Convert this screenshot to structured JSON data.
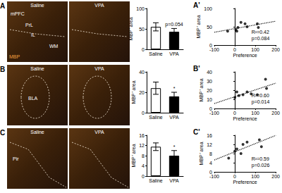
{
  "chart_data": [
    {
      "type": "bar",
      "ylabel": "MBP⁺ area",
      "categories": [
        "Saline",
        "VPA"
      ],
      "values": [
        55,
        43
      ],
      "errors": [
        10,
        8
      ],
      "colors": [
        "#ffffff",
        "#000000"
      ],
      "ylim": [
        0,
        100
      ],
      "yticks": [
        0,
        50,
        100
      ],
      "annotations": [
        {
          "category": "VPA",
          "text": "p=0.054"
        }
      ]
    },
    {
      "type": "bar",
      "ylabel": "MBP⁺ area",
      "categories": [
        "Saline",
        "VPA"
      ],
      "values": [
        24,
        16
      ],
      "errors": [
        6,
        4
      ],
      "colors": [
        "#ffffff",
        "#000000"
      ],
      "ylim": [
        0,
        40
      ],
      "yticks": [
        0,
        20,
        40
      ],
      "annotations": [
        {
          "category": "VPA",
          "text": "*"
        }
      ]
    },
    {
      "type": "bar",
      "ylabel": "MBP⁺ area",
      "categories": [
        "Saline",
        "VPA"
      ],
      "values": [
        11.5,
        8
      ],
      "errors": [
        1.5,
        2
      ],
      "colors": [
        "#ffffff",
        "#000000"
      ],
      "ylim": [
        0,
        16
      ],
      "yticks": [
        0,
        4,
        8,
        12,
        16
      ],
      "annotations": [
        {
          "category": "VPA",
          "text": "*"
        }
      ]
    },
    {
      "type": "scatter",
      "title": "A'",
      "xlabel": "Preference",
      "ylabel": "MBP⁺ area",
      "x": [
        -35,
        5,
        10,
        15,
        30,
        50,
        60,
        110,
        115
      ],
      "values": [
        38,
        42,
        38,
        48,
        62,
        58,
        50,
        58,
        48
      ],
      "xlim": [
        -100,
        200
      ],
      "xticks": [
        -100,
        0,
        100,
        200
      ],
      "ylim": [
        0,
        100
      ],
      "yticks": [
        0,
        50,
        100
      ],
      "annotations": [
        "R²=0.42",
        "p=0.084"
      ],
      "color": "#000000",
      "marker": "circle",
      "line_style": "dotted"
    },
    {
      "type": "scatter",
      "title": "B'",
      "xlabel": "Preference",
      "ylabel": "MBP⁺ area",
      "x": [
        0,
        10,
        20,
        40,
        60,
        80,
        110,
        150,
        155
      ],
      "values": [
        12,
        18,
        14,
        15,
        18,
        16,
        15,
        32,
        22
      ],
      "xlim": [
        -100,
        200
      ],
      "xticks": [
        -100,
        0,
        100,
        200
      ],
      "ylim": [
        0,
        40
      ],
      "yticks": [
        0,
        10,
        20,
        30,
        40
      ],
      "annotations": [
        "R²=0.60",
        "p=0.014"
      ],
      "color": "#000000",
      "marker": "circle",
      "line_style": "dotted"
    },
    {
      "type": "scatter",
      "title": "C'",
      "xlabel": "Preference",
      "ylabel": "MBP⁺ area",
      "x": [
        -30,
        0,
        10,
        30,
        40,
        60,
        120,
        130
      ],
      "values": [
        6,
        9,
        10,
        8,
        12,
        13,
        14,
        11
      ],
      "xlim": [
        -100,
        200
      ],
      "xticks": [
        -100,
        0,
        100,
        200
      ],
      "ylim": [
        0,
        16
      ],
      "yticks": [
        0,
        4,
        8,
        12,
        16
      ],
      "annotations": [
        "R²=0.59",
        "p=0.026"
      ],
      "color": "#000000",
      "marker": "circle",
      "line_style": "dotted"
    }
  ],
  "panels": [
    {
      "letter": "A",
      "left": "Saline",
      "right": "VPA",
      "labels": [
        "mPFC",
        "PrL",
        "IL",
        "WM"
      ],
      "stain": "MBP"
    },
    {
      "letter": "B",
      "left": "Saline",
      "right": "VPA",
      "labels": [
        "BLA"
      ]
    },
    {
      "letter": "C",
      "left": "Saline",
      "right": "VPA",
      "labels": [
        "Pir"
      ]
    }
  ]
}
